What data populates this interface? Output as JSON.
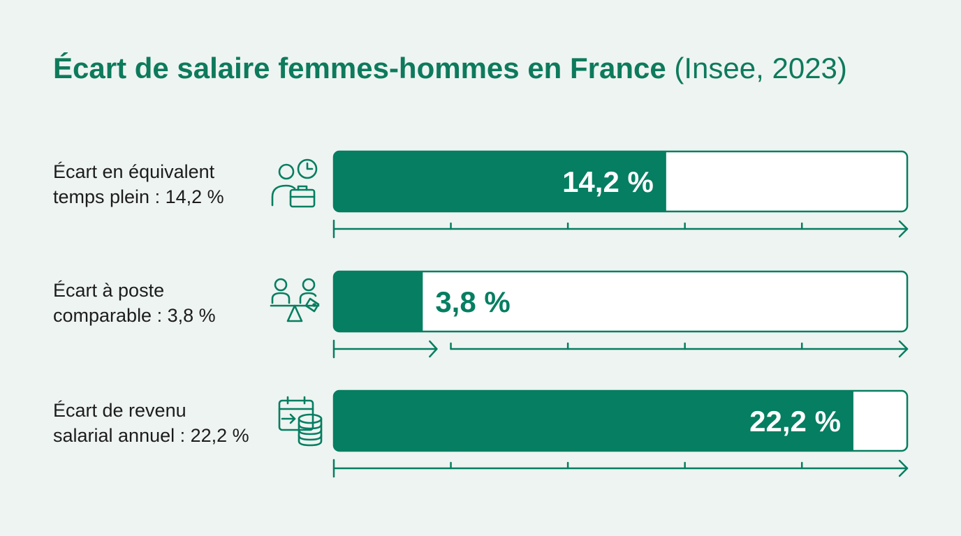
{
  "title": {
    "main": "Écart de salaire femmes-hommes en France",
    "source": "(Insee, 2023)"
  },
  "rows": [
    {
      "label_line1": "Écart en équivalent",
      "label_line2": "temps plein : 14,2 %",
      "icon": "person-clock-briefcase-icon"
    },
    {
      "label_line1": "Écart à poste",
      "label_line2": "comparable : 3,8 %",
      "icon": "people-balance-tag-icon"
    },
    {
      "label_line1": "Écart de revenu",
      "label_line2": "salarial annuel : 22,2 %",
      "icon": "calendar-coins-icon"
    }
  ],
  "colors": {
    "accent": "#057e61",
    "title": "#0d7a5c",
    "background": "#eef4f1",
    "bar_track": "#ffffff",
    "label_text": "#1c1c1c"
  },
  "chart_data": {
    "type": "bar",
    "orientation": "horizontal",
    "categories": [
      "Écart en équivalent temps plein",
      "Écart à poste comparable",
      "Écart de revenu salarial annuel"
    ],
    "values": [
      14.2,
      3.8,
      22.2
    ],
    "value_labels": [
      "14,2 %",
      "3,8 %",
      "22,2 %"
    ],
    "unit": "%",
    "title": "Écart de salaire femmes-hommes en France (Insee, 2023)",
    "xlabel": "",
    "ylabel": "",
    "xlim": [
      0,
      24.5
    ],
    "grid": false,
    "legend": "none"
  }
}
